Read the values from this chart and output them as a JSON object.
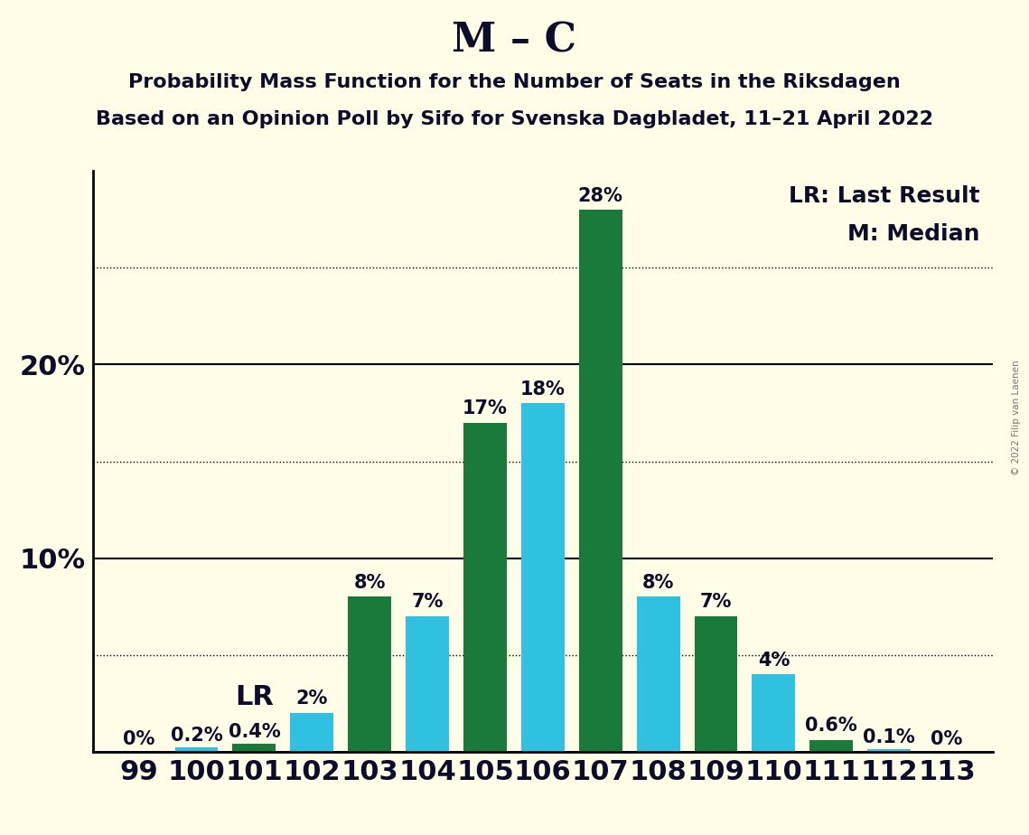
{
  "title": "M – C",
  "subtitle1": "Probability Mass Function for the Number of Seats in the Riksdagen",
  "subtitle2": "Based on an Opinion Poll by Sifo for Svenska Dagbladet, 11–21 April 2022",
  "copyright": "© 2022 Filip van Laenen",
  "seats": [
    99,
    100,
    101,
    102,
    103,
    104,
    105,
    106,
    107,
    108,
    109,
    110,
    111,
    112,
    113
  ],
  "values": [
    0.0,
    0.2,
    0.4,
    2.0,
    8.0,
    7.0,
    17.0,
    18.0,
    28.0,
    8.0,
    7.0,
    4.0,
    0.6,
    0.1,
    0.0
  ],
  "colors": [
    "#30c0e0",
    "#30c0e0",
    "#1a7a3c",
    "#30c0e0",
    "#1a7a3c",
    "#30c0e0",
    "#1a7a3c",
    "#30c0e0",
    "#1a7a3c",
    "#30c0e0",
    "#1a7a3c",
    "#30c0e0",
    "#1a7a3c",
    "#30c0e0",
    "#1a7a3c"
  ],
  "labels": [
    "0%",
    "0.2%",
    "0.4%",
    "2%",
    "8%",
    "7%",
    "17%",
    "18%",
    "28%",
    "8%",
    "7%",
    "4%",
    "0.6%",
    "0.1%",
    "0%"
  ],
  "lr_seat_idx": 2,
  "median_seat_idx": 7,
  "green_color": "#1a7a3c",
  "cyan_color": "#30c0e0",
  "background_color": "#fffde8",
  "bar_width": 0.75,
  "ylim": [
    0,
    30
  ],
  "solid_yticks": [
    10,
    20
  ],
  "dotted_yticks": [
    5,
    15,
    25
  ],
  "legend_lr": "LR: Last Result",
  "legend_m": "M: Median",
  "title_fontsize": 32,
  "subtitle_fontsize": 16,
  "axis_tick_fontsize": 22,
  "bar_label_fontsize": 15,
  "legend_fontsize": 18,
  "lr_label_fontsize": 22,
  "m_label_fontsize": 30,
  "text_color": "#0d0d2b"
}
